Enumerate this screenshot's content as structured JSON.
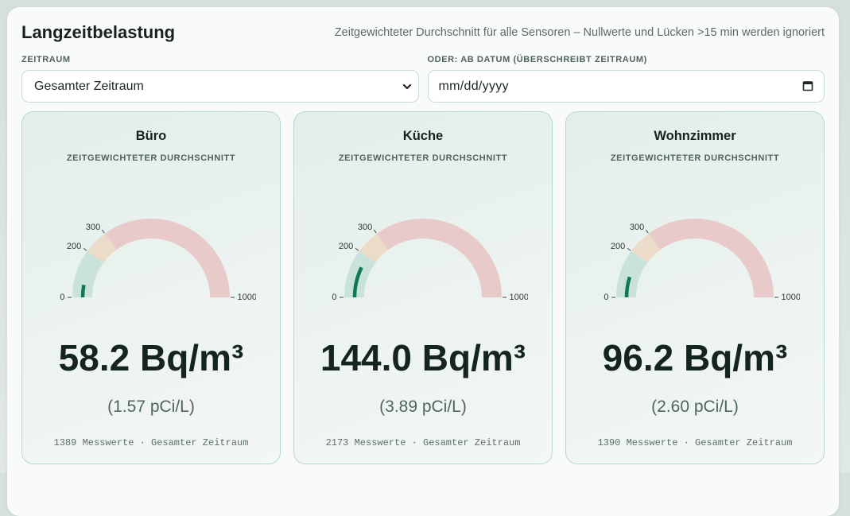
{
  "header": {
    "title": "Langzeitbelastung",
    "subtitle": "Zeitgewichteter Durchschnitt für alle Sensoren – Nullwerte und Lücken >15 min werden ignoriert"
  },
  "filters": {
    "period_label": "ZEITRAUM",
    "period_value": "Gesamter Zeitraum",
    "date_label": "ODER: AB DATUM (ÜBERSCHREIBT ZEITRAUM)",
    "date_placeholder": "mm/dd/yyyy",
    "date_value": ""
  },
  "gauge": {
    "min": 0,
    "max": 1000,
    "ticks": [
      0,
      200,
      300,
      1000
    ],
    "segments": [
      {
        "zone": "good",
        "from": 0,
        "to": 200,
        "color": "#c9e2da"
      },
      {
        "zone": "elevated",
        "from": 200,
        "to": 300,
        "color": "#eadcc8"
      },
      {
        "zone": "high",
        "from": 300,
        "to": 1000,
        "color": "#e8cacb"
      }
    ],
    "value_color": "#0f7a4f"
  },
  "cards": [
    {
      "title": "Büro",
      "subtitle": "ZEITGEWICHTETER DURCHSCHNITT",
      "value_bq": 58.2,
      "value_label": "58.2 Bq/m³",
      "pci_label": "(1.57 pCi/L)",
      "footer": "1389 Messwerte · Gesamter Zeitraum"
    },
    {
      "title": "Küche",
      "subtitle": "ZEITGEWICHTETER DURCHSCHNITT",
      "value_bq": 144.0,
      "value_label": "144.0 Bq/m³",
      "pci_label": "(3.89 pCi/L)",
      "footer": "2173 Messwerte · Gesamter Zeitraum"
    },
    {
      "title": "Wohnzimmer",
      "subtitle": "ZEITGEWICHTETER DURCHSCHNITT",
      "value_bq": 96.2,
      "value_label": "96.2 Bq/m³",
      "pci_label": "(2.60 pCi/L)",
      "footer": "1390 Messwerte · Gesamter Zeitraum"
    }
  ]
}
